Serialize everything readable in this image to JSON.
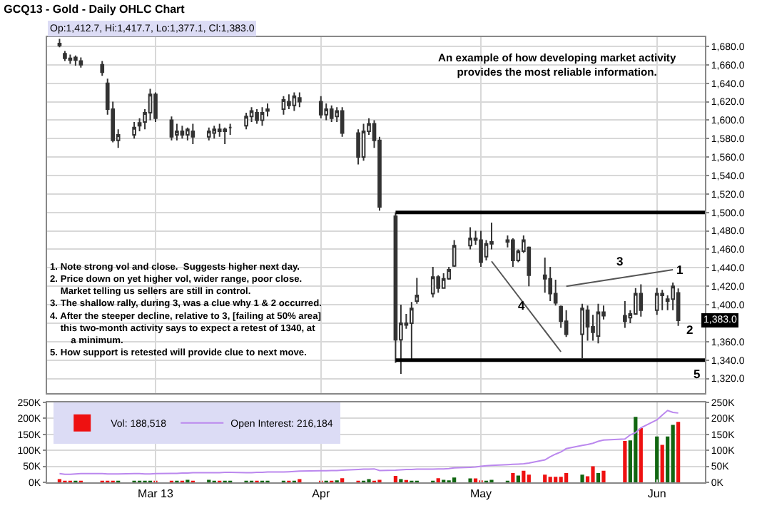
{
  "chart_data": [
    {
      "type": "candlestick",
      "title": "GCQ13 - Gold - Daily OHLC Chart",
      "color": "#333333",
      "x": [
        "2013-02-11",
        "2013-02-12",
        "2013-02-13",
        "2013-02-14",
        "2013-02-15",
        "2013-02-19",
        "2013-02-20",
        "2013-02-21",
        "2013-02-22",
        "2013-02-25",
        "2013-02-26",
        "2013-02-27",
        "2013-02-28",
        "2013-03-01",
        "2013-03-04",
        "2013-03-05",
        "2013-03-06",
        "2013-03-07",
        "2013-03-08",
        "2013-03-11",
        "2013-03-12",
        "2013-03-13",
        "2013-03-14",
        "2013-03-15",
        "2013-03-18",
        "2013-03-19",
        "2013-03-20",
        "2013-03-21",
        "2013-03-22",
        "2013-03-25",
        "2013-03-26",
        "2013-03-27",
        "2013-03-28",
        "2013-04-01",
        "2013-04-02",
        "2013-04-03",
        "2013-04-04",
        "2013-04-05",
        "2013-04-08",
        "2013-04-09",
        "2013-04-10",
        "2013-04-11",
        "2013-04-12",
        "2013-04-15",
        "2013-04-16",
        "2013-04-17",
        "2013-04-18",
        "2013-04-19",
        "2013-04-22",
        "2013-04-23",
        "2013-04-24",
        "2013-04-25",
        "2013-04-26",
        "2013-04-29",
        "2013-04-30",
        "2013-05-01",
        "2013-05-02",
        "2013-05-03",
        "2013-05-06",
        "2013-05-07",
        "2013-05-08",
        "2013-05-09",
        "2013-05-10",
        "2013-05-13",
        "2013-05-14",
        "2013-05-15",
        "2013-05-16",
        "2013-05-17",
        "2013-05-20",
        "2013-05-21",
        "2013-05-22",
        "2013-05-23",
        "2013-05-24",
        "2013-05-28",
        "2013-05-29",
        "2013-05-30",
        "2013-05-31",
        "2013-06-03",
        "2013-06-04",
        "2013-06-05",
        "2013-06-06",
        "2013-06-07"
      ],
      "ohlc": [
        [
          1683,
          1688,
          1679,
          1681
        ],
        [
          1672,
          1675,
          1664,
          1667
        ],
        [
          1667,
          1671,
          1661,
          1665
        ],
        [
          1665,
          1670,
          1659,
          1668
        ],
        [
          1664,
          1668,
          1657,
          1660
        ],
        [
          1660,
          1664,
          1648,
          1652
        ],
        [
          1640,
          1645,
          1606,
          1612
        ],
        [
          1612,
          1620,
          1576,
          1578
        ],
        [
          1578,
          1590,
          1570,
          1584
        ],
        [
          1584,
          1598,
          1580,
          1592
        ],
        [
          1594,
          1602,
          1588,
          1597
        ],
        [
          1598,
          1612,
          1590,
          1608
        ],
        [
          1608,
          1634,
          1600,
          1628
        ],
        [
          1628,
          1630,
          1598,
          1602
        ],
        [
          1600,
          1604,
          1578,
          1582
        ],
        [
          1584,
          1596,
          1578,
          1588
        ],
        [
          1588,
          1594,
          1580,
          1584
        ],
        [
          1584,
          1592,
          1578,
          1590
        ],
        [
          1588,
          1596,
          1574,
          1582
        ],
        [
          1582,
          1592,
          1578,
          1588
        ],
        [
          1586,
          1594,
          1580,
          1590
        ],
        [
          1590,
          1596,
          1582,
          1588
        ],
        [
          1588,
          1592,
          1574,
          1590
        ],
        [
          1592,
          1596,
          1584,
          1592
        ],
        [
          1594,
          1608,
          1590,
          1604
        ],
        [
          1604,
          1614,
          1598,
          1610
        ],
        [
          1608,
          1612,
          1596,
          1600
        ],
        [
          1600,
          1614,
          1594,
          1608
        ],
        [
          1610,
          1618,
          1604,
          1612
        ],
        [
          1612,
          1626,
          1606,
          1622
        ],
        [
          1620,
          1628,
          1612,
          1616
        ],
        [
          1616,
          1630,
          1610,
          1626
        ],
        [
          1624,
          1630,
          1614,
          1620
        ],
        [
          1620,
          1626,
          1602,
          1606
        ],
        [
          1606,
          1618,
          1600,
          1612
        ],
        [
          1612,
          1616,
          1598,
          1602
        ],
        [
          1604,
          1614,
          1598,
          1610
        ],
        [
          1610,
          1614,
          1582,
          1586
        ],
        [
          1586,
          1590,
          1552,
          1560
        ],
        [
          1560,
          1596,
          1556,
          1588
        ],
        [
          1588,
          1602,
          1584,
          1596
        ],
        [
          1596,
          1600,
          1570,
          1578
        ],
        [
          1578,
          1582,
          1502,
          1506
        ],
        [
          1496,
          1500,
          1337,
          1362
        ],
        [
          1362,
          1400,
          1325,
          1380
        ],
        [
          1380,
          1390,
          1374,
          1378
        ],
        [
          1380,
          1403,
          1339,
          1396
        ],
        [
          1404,
          1429,
          1401,
          1410
        ],
        [
          1412,
          1441,
          1408,
          1430
        ],
        [
          1430,
          1432,
          1413,
          1418
        ],
        [
          1418,
          1434,
          1418,
          1428
        ],
        [
          1428,
          1441,
          1427,
          1438
        ],
        [
          1442,
          1470,
          1441,
          1464
        ],
        [
          1464,
          1484,
          1460,
          1472
        ],
        [
          1472,
          1480,
          1465,
          1470
        ],
        [
          1470,
          1480,
          1441,
          1446
        ],
        [
          1452,
          1470,
          1448,
          1466
        ],
        [
          1466,
          1489,
          1460,
          1468
        ],
        [
          1468,
          1475,
          1462,
          1470
        ],
        [
          1470,
          1472,
          1441,
          1448
        ],
        [
          1448,
          1460,
          1446,
          1458
        ],
        [
          1458,
          1475,
          1456,
          1470
        ],
        [
          1462,
          1463,
          1420,
          1432
        ],
        [
          1432,
          1451,
          1413,
          1428
        ],
        [
          1428,
          1441,
          1404,
          1412
        ],
        [
          1412,
          1427,
          1399,
          1402
        ],
        [
          1398,
          1399,
          1375,
          1382
        ],
        [
          1382,
          1394,
          1365,
          1368
        ],
        [
          1368,
          1401,
          1342,
          1396
        ],
        [
          1394,
          1399,
          1361,
          1376
        ],
        [
          1376,
          1389,
          1361,
          1370
        ],
        [
          1366,
          1401,
          1358,
          1392
        ],
        [
          1392,
          1399,
          1384,
          1388
        ],
        [
          1388,
          1404,
          1375,
          1382
        ],
        [
          1386,
          1394,
          1380,
          1390
        ],
        [
          1390,
          1418,
          1389,
          1412
        ],
        [
          1412,
          1422,
          1387,
          1394
        ],
        [
          1394,
          1418,
          1389,
          1412
        ],
        [
          1412,
          1416,
          1394,
          1410
        ],
        [
          1406,
          1410,
          1394,
          1404
        ],
        [
          1406,
          1424,
          1394,
          1420
        ],
        [
          1412.7,
          1417.7,
          1377.1,
          1383.0
        ]
      ],
      "series": [
        {
          "type": "line",
          "color": "#000000",
          "x": [
            "2013-04-15",
            "2013-06-12"
          ],
          "values": [
            1500,
            1500
          ]
        },
        {
          "type": "line",
          "color": "#000000",
          "x": [
            "2013-04-15",
            "2013-06-12"
          ],
          "values": [
            1340,
            1340
          ]
        },
        {
          "type": "line",
          "color": "#555555",
          "x": [
            "2013-05-17",
            "2013-06-06"
          ],
          "values": [
            1420,
            1438
          ]
        },
        {
          "type": "line",
          "color": "#555555",
          "x": [
            "2013-05-03",
            "2013-05-16"
          ],
          "values": [
            1447,
            1349
          ]
        }
      ],
      "xlim": [
        "2013-02-08T16:00",
        "2013-06-12"
      ],
      "xticks": [
        {
          "value": "2013-03-01",
          "label": null
        },
        {
          "value": "2013-04-01",
          "label": null
        },
        {
          "value": "2013-05-01",
          "label": null
        },
        {
          "value": "2013-06-03",
          "label": null
        }
      ],
      "ylim": [
        1304,
        1690
      ],
      "yticks": [
        {
          "value": 1320,
          "label": "1,320.0"
        },
        {
          "value": 1340,
          "label": "1,340.0"
        },
        {
          "value": 1360,
          "label": "1,360.0"
        },
        {
          "value": 1380,
          "label": null
        },
        {
          "value": 1400,
          "label": "1,400.0"
        },
        {
          "value": 1420,
          "label": "1,420.0"
        },
        {
          "value": 1440,
          "label": "1,440.0"
        },
        {
          "value": 1460,
          "label": "1,460.0"
        },
        {
          "value": 1480,
          "label": "1,480.0"
        },
        {
          "value": 1500,
          "label": "1,500.0"
        },
        {
          "value": 1520,
          "label": "1,520.0"
        },
        {
          "value": 1540,
          "label": "1,540.0"
        },
        {
          "value": 1560,
          "label": "1,560.0"
        },
        {
          "value": 1580,
          "label": "1,580.0"
        },
        {
          "value": 1600,
          "label": "1,600.0"
        },
        {
          "value": 1620,
          "label": "1,620.0"
        },
        {
          "value": 1640,
          "label": "1,640.0"
        },
        {
          "value": 1660,
          "label": "1,660.0"
        },
        {
          "value": 1680,
          "label": "1,680.0"
        }
      ],
      "tick_labels": "y",
      "grid": true,
      "annotations": [
        "Op:1,412.7, Hi:1,417.7, Lo:1,377.1, Cl:1,383.0",
        "An example of how developing market activity\nprovides the most reliable information.",
        "1. Note strong vol and close.  Suggests higher next day.\n2. Price down on yet higher vol, wider range, poor close.\n    Market telling us sellers are still in control.\n3. The shallow rally, during 3, was a clue why 1 & 2 occurred.\n4. After the steeper decline, relative to 3, [failing at 50% area]\n    this two-month activity says to expect a retest of 1340, at\n        a minimum.\n5. How support is retested will provide clue to next move.",
        "1",
        "2",
        "3",
        "4",
        "5",
        {
          "text": "1,383.0",
          "x": "2013-06-07",
          "y": 1383
        }
      ]
    },
    {
      "type": "bar",
      "x": [
        "2013-02-11",
        "2013-02-12",
        "2013-02-13",
        "2013-02-14",
        "2013-02-15",
        "2013-02-19",
        "2013-02-20",
        "2013-02-21",
        "2013-02-22",
        "2013-02-25",
        "2013-02-26",
        "2013-02-27",
        "2013-02-28",
        "2013-03-01",
        "2013-03-04",
        "2013-03-05",
        "2013-03-06",
        "2013-03-07",
        "2013-03-08",
        "2013-03-11",
        "2013-03-12",
        "2013-03-13",
        "2013-03-14",
        "2013-03-15",
        "2013-03-18",
        "2013-03-19",
        "2013-03-20",
        "2013-03-21",
        "2013-03-22",
        "2013-03-25",
        "2013-03-26",
        "2013-03-27",
        "2013-03-28",
        "2013-04-01",
        "2013-04-02",
        "2013-04-03",
        "2013-04-04",
        "2013-04-05",
        "2013-04-08",
        "2013-04-09",
        "2013-04-10",
        "2013-04-11",
        "2013-04-12",
        "2013-04-15",
        "2013-04-16",
        "2013-04-17",
        "2013-04-18",
        "2013-04-19",
        "2013-04-22",
        "2013-04-23",
        "2013-04-24",
        "2013-04-25",
        "2013-04-26",
        "2013-04-29",
        "2013-04-30",
        "2013-05-01",
        "2013-05-02",
        "2013-05-03",
        "2013-05-06",
        "2013-05-07",
        "2013-05-08",
        "2013-05-09",
        "2013-05-10",
        "2013-05-13",
        "2013-05-14",
        "2013-05-15",
        "2013-05-16",
        "2013-05-17",
        "2013-05-20",
        "2013-05-21",
        "2013-05-22",
        "2013-05-23",
        "2013-05-24",
        "2013-05-28",
        "2013-05-29",
        "2013-05-30",
        "2013-05-31",
        "2013-06-03",
        "2013-06-04",
        "2013-06-05",
        "2013-06-06",
        "2013-06-07"
      ],
      "series": [
        {
          "name": "Vol: 188,518",
          "type": "bar",
          "color": "#ee1111",
          "colors": [
            "#ee1111",
            "#ee1111",
            "#ee1111",
            "#116611",
            "#ee1111",
            "#ee1111",
            "#ee1111",
            "#ee1111",
            "#116611",
            "#116611",
            "#116611",
            "#116611",
            "#116611",
            "#ee1111",
            "#ee1111",
            "#116611",
            "#ee1111",
            "#116611",
            "#ee1111",
            "#116611",
            "#116611",
            "#ee1111",
            "#116611",
            "#116611",
            "#116611",
            "#116611",
            "#ee1111",
            "#116611",
            "#116611",
            "#116611",
            "#ee1111",
            "#116611",
            "#ee1111",
            "#ee1111",
            "#116611",
            "#ee1111",
            "#116611",
            "#ee1111",
            "#ee1111",
            "#116611",
            "#116611",
            "#ee1111",
            "#ee1111",
            "#ee1111",
            "#116611",
            "#ee1111",
            "#116611",
            "#116611",
            "#116611",
            "#ee1111",
            "#116611",
            "#116611",
            "#116611",
            "#116611",
            "#ee1111",
            "#ee1111",
            "#116611",
            "#116611",
            "#116611",
            "#ee1111",
            "#116611",
            "#ee1111",
            "#ee1111",
            "#ee1111",
            "#ee1111",
            "#ee1111",
            "#ee1111",
            "#ee1111",
            "#116611",
            "#ee1111",
            "#ee1111",
            "#116611",
            "#ee1111",
            "#ee1111",
            "#116611",
            "#116611",
            "#ee1111",
            "#116611",
            "#ee1111",
            "#116611",
            "#116611",
            "#ee1111"
          ],
          "values": [
            10000,
            3000,
            3000,
            4000,
            5000,
            5000,
            4000,
            3000,
            3000,
            3000,
            4000,
            3000,
            3000,
            3000,
            5000,
            3000,
            3000,
            8000,
            3000,
            8000,
            3000,
            3000,
            5000,
            4000,
            3000,
            3000,
            3000,
            3000,
            4000,
            3000,
            4000,
            5000,
            10000,
            5000,
            4000,
            3000,
            6000,
            13000,
            5000,
            4000,
            10000,
            5000,
            8000,
            20000,
            10000,
            7000,
            5000,
            5000,
            5000,
            13000,
            8000,
            6000,
            15000,
            12000,
            12000,
            6000,
            5000,
            8000,
            5000,
            29000,
            21000,
            36000,
            24000,
            24000,
            17000,
            17000,
            17000,
            29000,
            24000,
            19000,
            50000,
            29000,
            36000,
            129000,
            131000,
            204000,
            169000,
            143000,
            117000,
            143000,
            179000,
            188518
          ]
        },
        {
          "name": "Open Interest: 216,184",
          "type": "line",
          "color": "#bb88ee",
          "values": [
            27000,
            25000,
            25000,
            26000,
            27000,
            27000,
            26000,
            26000,
            26000,
            27000,
            27000,
            26000,
            26000,
            27000,
            28000,
            28000,
            29000,
            29000,
            30000,
            30000,
            30000,
            30000,
            31000,
            31000,
            30000,
            30000,
            31000,
            31000,
            32000,
            32000,
            33000,
            34000,
            35000,
            36000,
            36000,
            37000,
            37000,
            38000,
            40000,
            41000,
            41000,
            42000,
            37000,
            38000,
            39000,
            40000,
            40000,
            41000,
            41000,
            42000,
            42000,
            43000,
            45000,
            47000,
            48000,
            50000,
            52000,
            53000,
            55000,
            56000,
            57000,
            58000,
            60000,
            70000,
            80000,
            88000,
            95000,
            105000,
            115000,
            118000,
            122000,
            128000,
            132000,
            135000,
            148000,
            155000,
            170000,
            195000,
            210000,
            224000,
            218000,
            216184
          ]
        }
      ],
      "xlim": [
        "2013-02-08T16:00",
        "2013-06-12"
      ],
      "xticks": [
        {
          "value": "2013-03-01",
          "label": "Mar 13"
        },
        {
          "value": "2013-04-01",
          "label": "Apr"
        },
        {
          "value": "2013-05-01",
          "label": "May"
        },
        {
          "value": "2013-06-03",
          "label": "Jun"
        }
      ],
      "ylim": [
        0,
        250000
      ],
      "yticks": [
        {
          "value": 0,
          "label": "0K"
        },
        {
          "value": 50000,
          "label": "50K"
        },
        {
          "value": 100000,
          "label": "100K"
        },
        {
          "value": 150000,
          "label": "150K"
        },
        {
          "value": 200000,
          "label": "200K"
        },
        {
          "value": 250000,
          "label": "250K"
        }
      ],
      "y2lim": [
        0,
        250000
      ],
      "y2ticks": [
        {
          "value": 0,
          "label": "0K"
        },
        {
          "value": 50000,
          "label": "50K"
        },
        {
          "value": 100000,
          "label": "100K"
        },
        {
          "value": 150000,
          "label": "150K"
        },
        {
          "value": 200000,
          "label": "200K"
        },
        {
          "value": 250000,
          "label": "250K"
        }
      ],
      "grid": true,
      "legend": "top left"
    }
  ]
}
